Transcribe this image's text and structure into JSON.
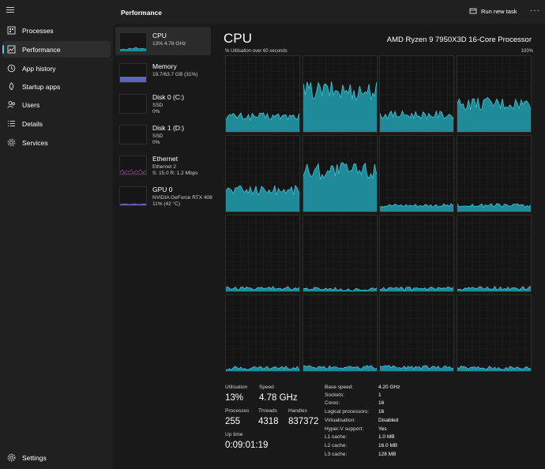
{
  "header": {
    "title": "Performance",
    "run_task_label": "Run new task",
    "more_label": "···"
  },
  "nav": {
    "items": [
      {
        "label": "Processes",
        "icon": "processes-icon"
      },
      {
        "label": "Performance",
        "icon": "performance-icon",
        "active": true
      },
      {
        "label": "App history",
        "icon": "history-icon"
      },
      {
        "label": "Startup apps",
        "icon": "startup-icon"
      },
      {
        "label": "Users",
        "icon": "users-icon"
      },
      {
        "label": "Details",
        "icon": "details-icon"
      },
      {
        "label": "Services",
        "icon": "services-icon"
      }
    ],
    "settings_label": "Settings"
  },
  "resources": [
    {
      "name": "CPU",
      "sub1": "13%  4.78 GHz",
      "sub2": "",
      "sub3": ""
    },
    {
      "name": "Memory",
      "sub1": "19.7/63.7 GB (31%)",
      "sub2": "",
      "sub3": ""
    },
    {
      "name": "Disk 0 (C:)",
      "sub1": "SSD",
      "sub2": "0%",
      "sub3": ""
    },
    {
      "name": "Disk 1 (D:)",
      "sub1": "SSD",
      "sub2": "0%",
      "sub3": ""
    },
    {
      "name": "Ethernet",
      "sub1": "Ethernet 2",
      "sub2": "S: 15.0  R: 1.2 Mbps",
      "sub3": ""
    },
    {
      "name": "GPU 0",
      "sub1": "NVIDIA GeForce RTX 408",
      "sub2": "11% (42 °C)",
      "sub3": ""
    }
  ],
  "main": {
    "title": "CPU",
    "model": "AMD Ryzen 9 7950X3D 16-Core Processor",
    "util_label": "% Utilisation over 60 seconds",
    "util_max": "100%"
  },
  "colors": {
    "accent": "#4cc2ff",
    "graph_fill": "#1f8a98",
    "graph_line": "#3fc5d8",
    "memory": "#7b86d6",
    "ethernet": "#c873c8",
    "gpu": "#a87adf"
  },
  "core_levels": [
    0.22,
    0.55,
    0.24,
    0.38,
    0.3,
    0.55,
    0.1,
    0.1,
    0.06,
    0.05,
    0.05,
    0.06,
    0.06,
    0.07,
    0.07,
    0.06
  ],
  "stats": {
    "utilisation": {
      "label": "Utilisation",
      "value": "13%"
    },
    "speed": {
      "label": "Speed",
      "value": "4.78 GHz"
    },
    "processes": {
      "label": "Processes",
      "value": "255"
    },
    "threads": {
      "label": "Threads",
      "value": "4318"
    },
    "handles": {
      "label": "Handles",
      "value": "837372"
    },
    "uptime": {
      "label": "Up time",
      "value": "0:09:01:19"
    }
  },
  "specs": [
    {
      "label": "Base speed:",
      "value": "4.20 GHz"
    },
    {
      "label": "Sockets:",
      "value": "1"
    },
    {
      "label": "Cores:",
      "value": "16"
    },
    {
      "label": "Logical processors:",
      "value": "16"
    },
    {
      "label": "Virtualisation:",
      "value": "Disabled"
    },
    {
      "label": "Hyper-V support:",
      "value": "Yes"
    },
    {
      "label": "L1 cache:",
      "value": "1.0 MB"
    },
    {
      "label": "L2 cache:",
      "value": "16.0 MB"
    },
    {
      "label": "L3 cache:",
      "value": "128 MB"
    }
  ]
}
